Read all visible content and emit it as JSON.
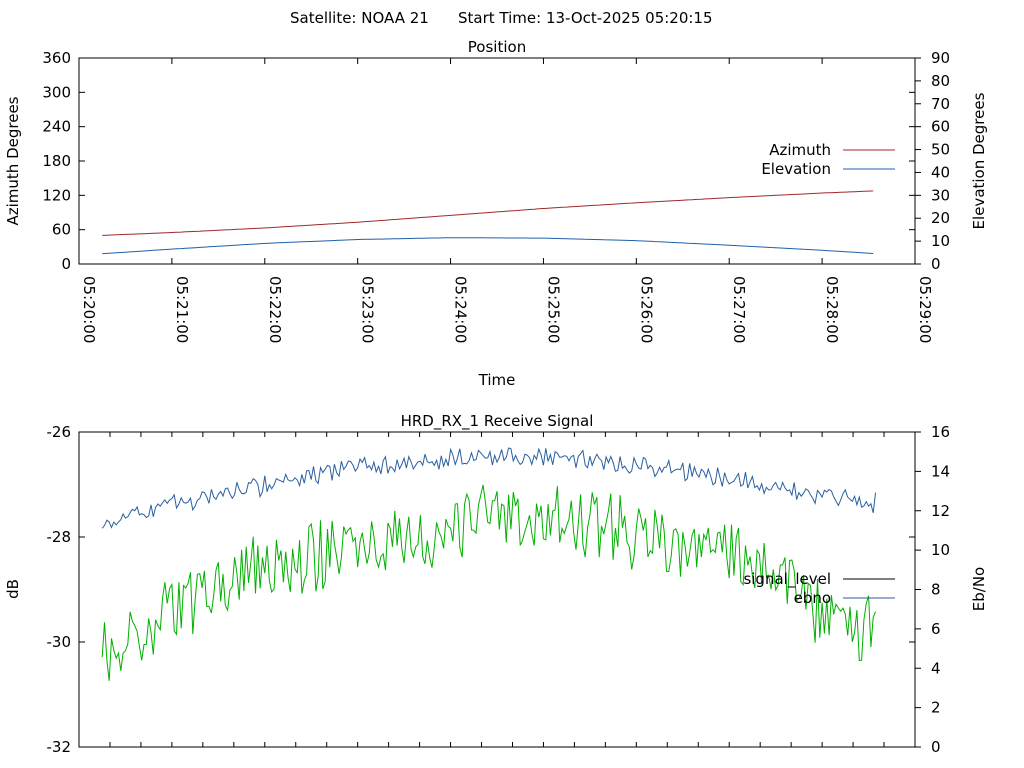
{
  "header": {
    "satellite": "Satellite: NOAA 21",
    "start_time": "Start Time: 13-Oct-2025 05:20:15"
  },
  "chart_data": [
    {
      "type": "line",
      "title": "Position",
      "xlabel": "Time",
      "ylabel_left": "Azimuth Degrees",
      "ylabel_right": "Elevation Degrees",
      "xlim": [
        "05:20:00",
        "05:29:00"
      ],
      "ylim_left": [
        0,
        360
      ],
      "ylim_right": [
        0,
        90
      ],
      "x_ticks": [
        "05:20:00",
        "05:21:00",
        "05:22:00",
        "05:23:00",
        "05:24:00",
        "05:25:00",
        "05:26:00",
        "05:27:00",
        "05:28:00",
        "05:29:00"
      ],
      "y_ticks_left": [
        "0",
        "60",
        "120",
        "180",
        "240",
        "300",
        "360"
      ],
      "y_ticks_right": [
        "0",
        "10",
        "20",
        "30",
        "40",
        "50",
        "60",
        "70",
        "80",
        "90"
      ],
      "legend_position": "right",
      "grid": false,
      "series": [
        {
          "name": "Azimuth",
          "axis": "left",
          "color": "#a02828",
          "x": [
            "05:20:15",
            "05:21:00",
            "05:22:00",
            "05:23:00",
            "05:24:00",
            "05:25:00",
            "05:26:00",
            "05:27:00",
            "05:28:00",
            "05:28:35"
          ],
          "values": [
            50,
            55,
            63,
            73,
            85,
            97,
            107,
            116,
            124,
            128
          ]
        },
        {
          "name": "Elevation",
          "axis": "right",
          "color": "#1f5fa8",
          "x": [
            "05:20:15",
            "05:21:00",
            "05:22:00",
            "05:23:00",
            "05:24:00",
            "05:25:00",
            "05:26:00",
            "05:27:00",
            "05:28:00",
            "05:28:35"
          ],
          "values": [
            4.5,
            6.5,
            9,
            10.7,
            11.5,
            11.3,
            10.2,
            8.2,
            6,
            4.5
          ]
        }
      ]
    },
    {
      "type": "line",
      "title": "HRD_RX_1 Receive Signal",
      "ylabel_left": "dB",
      "ylabel_right": "Eb/No",
      "xlim": [
        "05:20:00",
        "05:29:00"
      ],
      "ylim_left": [
        -32,
        -26
      ],
      "ylim_right": [
        0,
        16
      ],
      "y_ticks_left": [
        "-26",
        "-28",
        "-30",
        "-32"
      ],
      "y_ticks_right": [
        "0",
        "2",
        "4",
        "6",
        "8",
        "10",
        "12",
        "14",
        "16"
      ],
      "legend_position": "right",
      "grid": false,
      "series": [
        {
          "name": "signal_level",
          "axis": "left",
          "color": "#000000",
          "x": [],
          "values": []
        },
        {
          "name": "ebno",
          "axis": "right",
          "color": "#2a5fa0",
          "x": [
            "05:20:15",
            "05:20:30",
            "05:21:00",
            "05:21:30",
            "05:22:00",
            "05:22:30",
            "05:23:00",
            "05:23:30",
            "05:24:00",
            "05:24:30",
            "05:25:00",
            "05:25:30",
            "05:26:00",
            "05:26:30",
            "05:27:00",
            "05:27:30",
            "05:28:00",
            "05:28:35"
          ],
          "values": [
            11.2,
            11.8,
            12.3,
            12.8,
            13.3,
            13.8,
            14.2,
            14.5,
            14.7,
            14.8,
            14.8,
            14.6,
            14.4,
            14.0,
            13.6,
            13.2,
            12.7,
            12.4
          ]
        },
        {
          "name": "",
          "axis": "right",
          "color": "#00b000",
          "x": [
            "05:20:15",
            "05:20:30",
            "05:21:00",
            "05:21:30",
            "05:22:00",
            "05:22:30",
            "05:23:00",
            "05:23:30",
            "05:24:00",
            "05:24:30",
            "05:25:00",
            "05:25:30",
            "05:26:00",
            "05:26:30",
            "05:27:00",
            "05:27:30",
            "05:28:00",
            "05:28:35"
          ],
          "values": [
            4.5,
            5.5,
            6.8,
            8.0,
            9.2,
            9.8,
            10.2,
            10.4,
            11.0,
            11.8,
            11.6,
            11.2,
            10.8,
            10.2,
            9.8,
            9.0,
            6.5,
            5.8
          ]
        }
      ]
    }
  ]
}
